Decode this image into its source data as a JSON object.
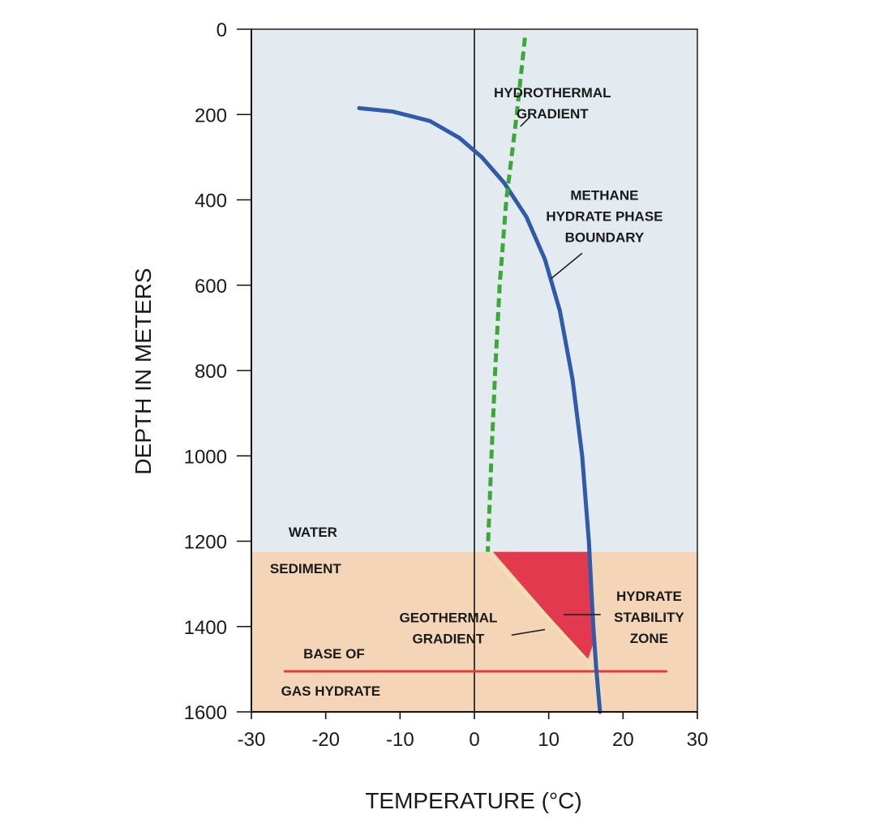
{
  "chart_data": {
    "type": "line",
    "title": "",
    "xlabel": "TEMPERATURE (°C)",
    "ylabel": "DEPTH IN METERS",
    "xlim": [
      -30,
      30
    ],
    "ylim": [
      0,
      1600
    ],
    "y_inverted": true,
    "x_ticks": [
      -30,
      -20,
      -10,
      0,
      10,
      20,
      30
    ],
    "y_ticks": [
      0,
      200,
      400,
      600,
      800,
      1000,
      1200,
      1400,
      1600
    ],
    "x_tick_labels": [
      "-30",
      "-20",
      "-10",
      "0",
      "10",
      "20",
      "30"
    ],
    "y_tick_labels": [
      "0",
      "200",
      "400",
      "600",
      "800",
      "1000",
      "1200",
      "1400",
      "1600"
    ],
    "grid": false,
    "regions": [
      {
        "name": "water",
        "label": "WATER",
        "depth_range": [
          0,
          1225
        ],
        "color": "#e4ebf0"
      },
      {
        "name": "sediment",
        "label": "SEDIMENT",
        "depth_range": [
          1225,
          1600
        ],
        "color": "#f4d5b8"
      }
    ],
    "series": [
      {
        "key": "methane_phase_boundary",
        "style": "solid",
        "color": "#2f5ba8",
        "points": [
          [
            -15.5,
            185
          ],
          [
            -11,
            193
          ],
          [
            -6,
            215
          ],
          [
            -2,
            255
          ],
          [
            1,
            300
          ],
          [
            4,
            360
          ],
          [
            7,
            440
          ],
          [
            9.5,
            540
          ],
          [
            11.5,
            660
          ],
          [
            13.2,
            820
          ],
          [
            14.5,
            1000
          ],
          [
            15.4,
            1200
          ],
          [
            16.0,
            1400
          ],
          [
            16.4,
            1500
          ],
          [
            16.9,
            1600
          ]
        ]
      },
      {
        "key": "hydrothermal_gradient",
        "style": "dashed",
        "color": "#3aa935",
        "points": [
          [
            6.8,
            20
          ],
          [
            5.7,
            200
          ],
          [
            4.3,
            400
          ],
          [
            3.4,
            600
          ],
          [
            2.8,
            800
          ],
          [
            2.3,
            1000
          ],
          [
            1.8,
            1225
          ]
        ]
      },
      {
        "key": "geothermal_gradient",
        "style": "solid",
        "color": "#f0e2b0",
        "points": [
          [
            1.8,
            1225
          ],
          [
            15.2,
            1480
          ],
          [
            17.2,
            1560
          ]
        ]
      },
      {
        "key": "base_of_gas_hydrate",
        "style": "solid",
        "color": "#e23b3b",
        "points": [
          [
            -25.5,
            1505
          ],
          [
            25.8,
            1505
          ]
        ]
      }
    ],
    "shaded_region": {
      "label": "HYDRATE STABILITY ZONE",
      "color": "#e2394f",
      "polygon": [
        [
          2.5,
          1225
        ],
        [
          15.4,
          1225
        ],
        [
          15.6,
          1300
        ],
        [
          15.8,
          1380
        ],
        [
          16.0,
          1440
        ],
        [
          15.2,
          1480
        ]
      ]
    },
    "annotations": [
      {
        "key": "hydrothermal",
        "lines": [
          "HYDROTHERMAL",
          "GRADIENT"
        ],
        "anchor": "middle",
        "pos": [
          10.5,
          160
        ],
        "leader": [
          [
            6.2,
            228
          ],
          [
            7.5,
            205
          ]
        ]
      },
      {
        "key": "methane",
        "lines": [
          "METHANE",
          "HYDRATE PHASE",
          "BOUNDARY"
        ],
        "anchor": "middle",
        "pos": [
          17.5,
          400
        ],
        "leader": [
          [
            10.3,
            585
          ],
          [
            14.5,
            525
          ]
        ]
      },
      {
        "key": "water",
        "lines": [
          "WATER"
        ],
        "anchor": "start",
        "pos": [
          -25,
          1190
        ],
        "leader": []
      },
      {
        "key": "sediment",
        "lines": [
          "SEDIMENT"
        ],
        "anchor": "start",
        "pos": [
          -27.5,
          1275
        ],
        "leader": []
      },
      {
        "key": "geothermal",
        "lines": [
          "GEOTHERMAL",
          "GRADIENT"
        ],
        "anchor": "middle",
        "pos": [
          -3.5,
          1390
        ],
        "leader": [
          [
            5,
            1420
          ],
          [
            9.5,
            1407
          ]
        ]
      },
      {
        "key": "hydrate_stability",
        "lines": [
          "HYDRATE",
          "STABILITY",
          "ZONE"
        ],
        "anchor": "middle",
        "pos": [
          23.5,
          1340
        ],
        "leader": [
          [
            12,
            1372
          ],
          [
            17,
            1372
          ]
        ]
      },
      {
        "key": "base_of",
        "lines": [
          "BASE OF"
        ],
        "anchor": "start",
        "pos": [
          -23,
          1475
        ],
        "leader": []
      },
      {
        "key": "gas_hydrate",
        "lines": [
          "GAS HYDRATE"
        ],
        "anchor": "start",
        "pos": [
          -26,
          1562
        ],
        "leader": []
      }
    ]
  }
}
